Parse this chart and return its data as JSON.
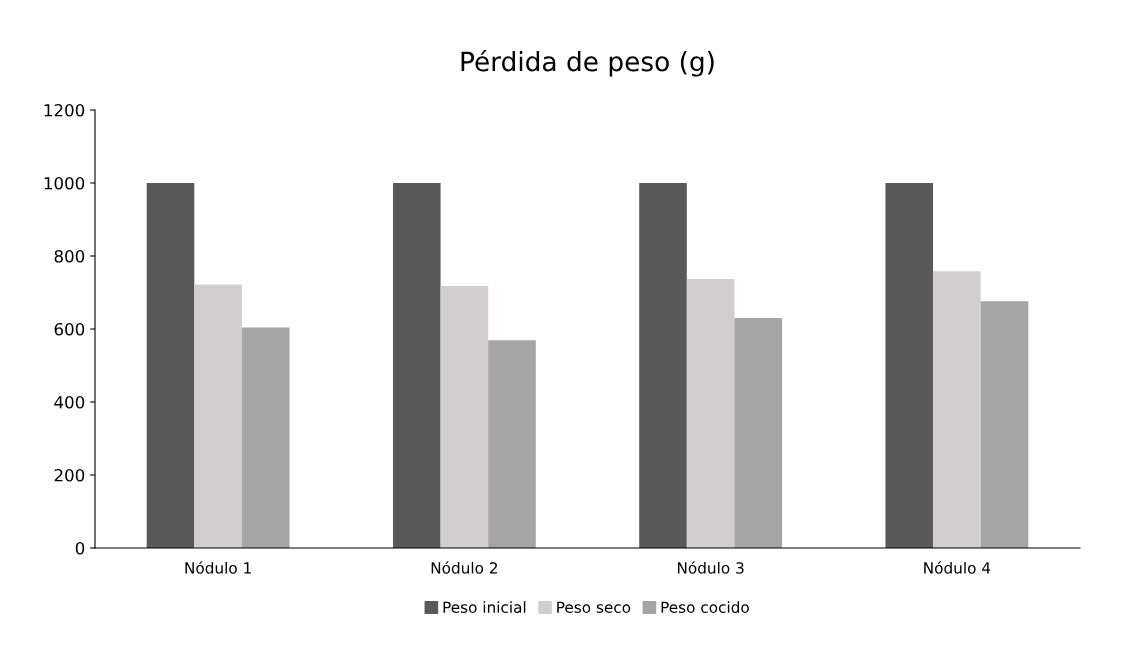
{
  "chart_data": {
    "type": "bar",
    "title": "Pérdida de peso (g)",
    "categories": [
      "Nódulo 1",
      "Nódulo 2",
      "Nódulo 3",
      "Nódulo 4"
    ],
    "series": [
      {
        "name": "Peso inicial",
        "color": "#595959",
        "values": [
          1000,
          1000,
          1000,
          1000
        ]
      },
      {
        "name": "Peso seco",
        "color": "#d0cece",
        "values": [
          722,
          718,
          737,
          758
        ]
      },
      {
        "name": "Peso cocido",
        "color": "#a5a5a5",
        "values": [
          604,
          569,
          630,
          676
        ]
      }
    ],
    "ylim": [
      0,
      1200
    ],
    "yticks": [
      0,
      200,
      400,
      600,
      800,
      1000,
      1200
    ],
    "grid": false,
    "legend": "bottom"
  }
}
